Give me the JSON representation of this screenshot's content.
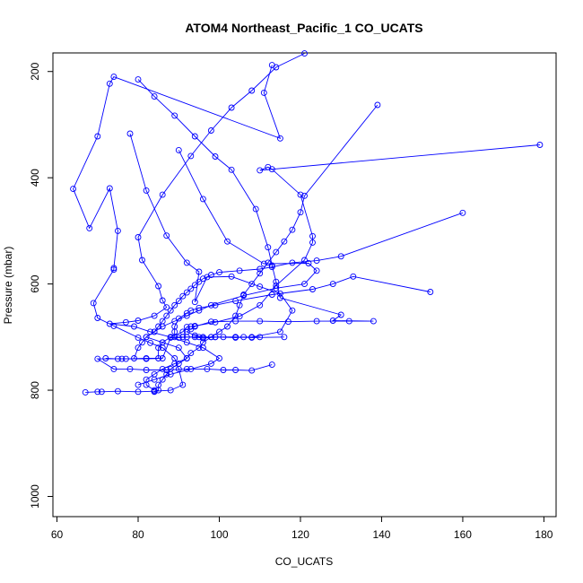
{
  "chart_data": {
    "type": "line",
    "title": "ATOM4 Northeast_Pacific_1 CO_UCATS",
    "xlabel": "CO_UCATS",
    "ylabel": "Pressure (mbar)",
    "xlim": [
      59,
      183
    ],
    "ylim": [
      1038,
      165
    ],
    "y_reversed": true,
    "x_ticks": [
      60,
      80,
      100,
      120,
      140,
      160,
      180
    ],
    "y_ticks": [
      200,
      400,
      600,
      800,
      1000
    ],
    "grid": false,
    "legend": "none",
    "marker": "open-circle",
    "color": "#0000ff",
    "series": [
      {
        "values": [
          [
            113,
            188
          ],
          [
            111,
            240
          ],
          [
            115,
            326
          ],
          [
            74,
            210
          ],
          [
            73,
            223
          ],
          [
            70,
            322
          ],
          [
            64,
            421
          ],
          [
            68,
            495
          ],
          [
            73,
            420
          ],
          [
            75,
            500
          ],
          [
            74,
            570
          ],
          [
            74,
            573
          ],
          [
            69,
            636
          ],
          [
            70,
            664
          ],
          [
            74,
            679
          ],
          [
            80,
            701
          ],
          [
            83,
            711
          ],
          [
            86,
            720
          ],
          [
            89,
            740
          ],
          [
            90,
            760
          ],
          [
            91,
            790
          ],
          [
            88,
            800
          ],
          [
            84,
            802
          ],
          [
            80,
            803
          ],
          [
            75,
            802
          ],
          [
            71,
            803
          ],
          [
            70,
            803
          ],
          [
            67,
            804
          ]
        ]
      },
      {
        "values": [
          [
            78,
            317
          ],
          [
            82,
            424
          ],
          [
            87,
            509
          ],
          [
            92,
            560
          ],
          [
            95,
            577
          ],
          [
            94,
            634
          ],
          [
            97,
            587
          ],
          [
            103,
            586
          ],
          [
            110,
            605
          ],
          [
            115,
            618
          ],
          [
            118,
            650
          ],
          [
            115,
            690
          ],
          [
            108,
            700
          ],
          [
            104,
            701
          ],
          [
            98,
            700
          ],
          [
            95,
            700
          ],
          [
            92,
            700
          ],
          [
            90,
            701
          ],
          [
            88,
            701
          ],
          [
            86,
            740
          ],
          [
            82,
            741
          ],
          [
            76,
            741
          ],
          [
            70,
            741
          ],
          [
            74,
            760
          ],
          [
            78,
            760
          ],
          [
            82,
            762
          ],
          [
            87,
            762
          ],
          [
            92,
            760
          ],
          [
            97,
            760
          ],
          [
            101,
            762
          ],
          [
            104,
            762
          ],
          [
            108,
            763
          ],
          [
            113,
            752
          ]
        ]
      },
      {
        "values": [
          [
            90,
            348
          ],
          [
            96,
            440
          ],
          [
            102,
            520
          ],
          [
            111,
            562
          ],
          [
            122,
            561
          ],
          [
            124,
            575
          ],
          [
            121,
            600
          ],
          [
            114,
            608
          ],
          [
            106,
            622
          ],
          [
            98,
            640
          ],
          [
            95,
            650
          ],
          [
            92,
            660
          ],
          [
            89,
            670
          ],
          [
            86,
            680
          ],
          [
            84,
            690
          ],
          [
            82,
            700
          ],
          [
            86,
            710
          ],
          [
            90,
            720
          ],
          [
            92,
            740
          ],
          [
            89,
            750
          ],
          [
            86,
            760
          ],
          [
            84,
            770
          ],
          [
            82,
            780
          ],
          [
            82,
            790
          ],
          [
            84,
            800
          ]
        ]
      },
      {
        "values": [
          [
            80,
            215
          ],
          [
            84,
            247
          ],
          [
            89,
            283
          ],
          [
            94,
            322
          ],
          [
            99,
            360
          ],
          [
            103,
            385
          ],
          [
            109,
            459
          ],
          [
            112,
            531
          ],
          [
            113,
            565
          ],
          [
            114,
            596
          ],
          [
            115,
            626
          ],
          [
            130,
            658
          ],
          [
            128,
            669
          ],
          [
            138,
            670
          ],
          [
            132,
            670
          ],
          [
            124,
            670
          ],
          [
            117,
            671
          ],
          [
            110,
            670
          ],
          [
            104,
            670
          ],
          [
            98,
            671
          ],
          [
            94,
            680
          ],
          [
            93,
            685
          ],
          [
            92,
            690
          ],
          [
            94,
            697
          ],
          [
            96,
            700
          ],
          [
            99,
            700
          ],
          [
            101,
            700
          ],
          [
            104,
            700
          ],
          [
            106,
            700
          ],
          [
            110,
            700
          ]
        ]
      },
      {
        "values": [
          [
            152,
            615
          ],
          [
            133,
            586
          ],
          [
            128,
            600
          ],
          [
            123,
            610
          ],
          [
            113,
            620
          ],
          [
            104,
            632
          ],
          [
            99,
            640
          ],
          [
            95,
            645
          ],
          [
            93,
            650
          ],
          [
            92,
            655
          ],
          [
            90,
            665
          ],
          [
            89,
            680
          ],
          [
            89,
            690
          ],
          [
            89,
            700
          ],
          [
            91,
            700
          ],
          [
            94,
            700
          ],
          [
            96,
            702
          ],
          [
            99,
            700
          ],
          [
            104,
            700
          ],
          [
            108,
            701
          ],
          [
            116,
            700
          ]
        ]
      },
      {
        "values": [
          [
            179,
            338
          ],
          [
            110,
            386
          ],
          [
            112,
            380
          ],
          [
            113,
            384
          ],
          [
            120,
            432
          ],
          [
            123,
            510
          ],
          [
            123,
            522
          ],
          [
            121,
            555
          ],
          [
            114,
            603
          ],
          [
            110,
            640
          ],
          [
            105,
            661
          ],
          [
            99,
            672
          ],
          [
            94,
            679
          ],
          [
            93,
            680
          ],
          [
            92,
            681
          ],
          [
            91,
            690
          ],
          [
            88,
            700
          ],
          [
            86,
            710
          ],
          [
            85,
            720
          ],
          [
            85,
            740
          ],
          [
            82,
            740
          ],
          [
            77,
            741
          ],
          [
            75,
            741
          ],
          [
            72,
            740
          ]
        ]
      },
      {
        "values": [
          [
            121,
            166
          ],
          [
            114,
            192
          ],
          [
            108,
            236
          ],
          [
            103,
            268
          ],
          [
            98,
            311
          ],
          [
            93,
            359
          ],
          [
            86,
            432
          ],
          [
            80,
            512
          ],
          [
            81,
            555
          ],
          [
            85,
            604
          ],
          [
            86,
            631
          ],
          [
            87,
            644
          ],
          [
            84,
            660
          ],
          [
            80,
            669
          ],
          [
            77,
            672
          ],
          [
            73,
            675
          ],
          [
            79,
            680
          ],
          [
            83,
            690
          ],
          [
            88,
            700
          ],
          [
            92,
            710
          ],
          [
            96,
            720
          ],
          [
            100,
            740
          ],
          [
            98,
            750
          ],
          [
            93,
            760
          ],
          [
            88,
            770
          ],
          [
            84,
            780
          ],
          [
            80,
            790
          ]
        ]
      },
      {
        "values": [
          [
            160,
            466
          ],
          [
            130,
            548
          ],
          [
            124,
            556
          ],
          [
            118,
            560
          ],
          [
            113,
            568
          ],
          [
            110,
            572
          ],
          [
            105,
            575
          ],
          [
            100,
            578
          ],
          [
            98,
            583
          ],
          [
            96,
            590
          ],
          [
            95,
            596
          ],
          [
            94,
            602
          ],
          [
            93,
            609
          ],
          [
            92,
            616
          ],
          [
            91,
            623
          ],
          [
            90,
            632
          ],
          [
            89,
            640
          ],
          [
            88,
            650
          ],
          [
            87,
            660
          ],
          [
            86,
            670
          ],
          [
            85,
            680
          ],
          [
            84,
            690
          ],
          [
            82,
            700
          ],
          [
            81,
            710
          ],
          [
            80,
            720
          ],
          [
            79,
            740
          ]
        ]
      },
      {
        "values": [
          [
            139,
            263
          ],
          [
            121,
            434
          ],
          [
            120,
            465
          ],
          [
            118,
            498
          ],
          [
            116,
            520
          ],
          [
            114,
            540
          ],
          [
            112,
            560
          ],
          [
            110,
            580
          ],
          [
            108,
            600
          ],
          [
            106,
            620
          ],
          [
            105,
            640
          ],
          [
            104,
            660
          ],
          [
            102,
            680
          ],
          [
            100,
            690
          ],
          [
            98,
            700
          ],
          [
            96,
            710
          ],
          [
            95,
            720
          ],
          [
            93,
            730
          ],
          [
            92,
            740
          ],
          [
            90,
            750
          ],
          [
            88,
            760
          ],
          [
            87,
            770
          ],
          [
            86,
            780
          ],
          [
            85,
            790
          ],
          [
            85,
            800
          ],
          [
            84,
            803
          ]
        ]
      }
    ]
  }
}
